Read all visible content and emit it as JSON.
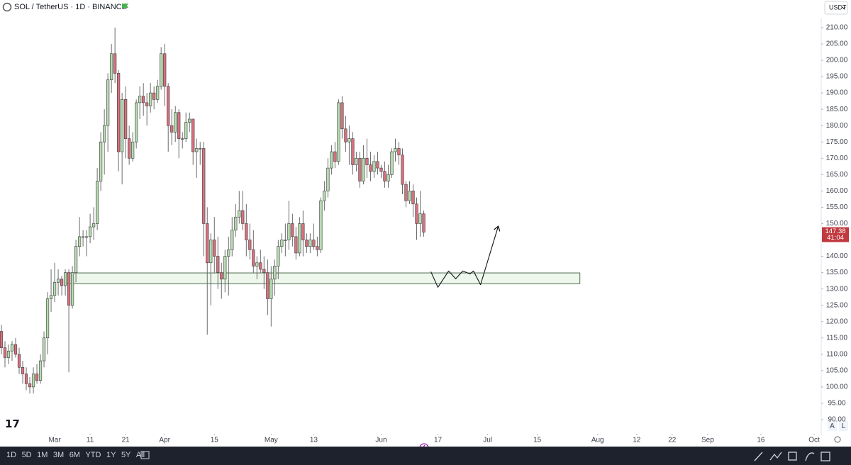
{
  "chart_data": {
    "type": "candlestick",
    "title": "SOL / TetherUS · 1D · BINANCE",
    "currency": "USDT",
    "x": [
      "02-15",
      "02-16",
      "02-17",
      "02-18",
      "02-19",
      "02-20",
      "02-21",
      "02-22",
      "02-23",
      "02-24",
      "02-25",
      "02-26",
      "02-27",
      "02-28",
      "02-29",
      "03-01",
      "03-02",
      "03-03",
      "03-04",
      "03-05",
      "03-06",
      "03-07",
      "03-08",
      "03-09",
      "03-10",
      "03-11",
      "03-12",
      "03-13",
      "03-14",
      "03-15",
      "03-16",
      "03-17",
      "03-18",
      "03-19",
      "03-20",
      "03-21",
      "03-22",
      "03-23",
      "03-24",
      "03-25",
      "03-26",
      "03-27",
      "03-28",
      "03-29",
      "03-30",
      "03-31",
      "04-01",
      "04-02",
      "04-03",
      "04-04",
      "04-05",
      "04-06",
      "04-07",
      "04-08",
      "04-09",
      "04-10",
      "04-11",
      "04-12",
      "04-13",
      "04-14",
      "04-15",
      "04-16",
      "04-17",
      "04-18",
      "04-19",
      "04-20",
      "04-21",
      "04-22",
      "04-23",
      "04-24",
      "04-25",
      "04-26",
      "04-27",
      "04-28",
      "04-29",
      "04-30",
      "05-01",
      "05-02",
      "05-03",
      "05-04",
      "05-05",
      "05-06",
      "05-07",
      "05-08",
      "05-09",
      "05-10",
      "05-11",
      "05-12",
      "05-13",
      "05-14",
      "05-15",
      "05-16",
      "05-17",
      "05-18",
      "05-19",
      "05-20",
      "05-21",
      "05-22",
      "05-23",
      "05-24",
      "05-25",
      "05-26",
      "05-27",
      "05-28",
      "05-29",
      "05-30",
      "05-31",
      "06-01",
      "06-02",
      "06-03",
      "06-04",
      "06-05",
      "06-06",
      "06-07",
      "06-08",
      "06-09",
      "06-10",
      "06-11",
      "06-12",
      "06-13"
    ],
    "open": [
      117,
      112,
      109,
      111,
      113,
      110,
      106,
      104,
      101,
      100,
      104,
      102,
      108,
      115,
      127,
      128,
      132,
      133,
      131,
      135,
      125,
      135,
      143,
      146,
      146,
      146,
      149,
      150,
      163,
      175,
      180,
      194,
      202,
      196,
      172,
      188,
      176,
      170,
      175,
      187,
      189,
      187,
      186,
      190,
      188,
      192,
      202,
      192,
      180,
      178,
      184,
      176,
      176,
      181,
      182,
      172,
      173,
      173,
      150,
      138,
      145,
      140,
      135,
      133,
      140,
      142,
      148,
      152,
      154,
      150,
      145,
      142,
      137,
      138,
      136,
      135,
      127,
      133,
      137,
      143,
      145,
      145,
      150,
      146,
      141,
      150,
      145,
      143,
      145,
      143,
      142,
      157,
      160,
      167,
      172,
      169,
      187,
      179,
      175,
      176,
      168,
      170,
      163,
      170,
      168,
      166,
      169,
      167,
      166,
      163,
      165,
      172,
      173,
      171,
      162,
      157,
      160,
      156,
      150,
      153
    ],
    "high": [
      119,
      114,
      113,
      114,
      115,
      112,
      108,
      106,
      103,
      106,
      107,
      110,
      117,
      129,
      136,
      138,
      136,
      134,
      136,
      136,
      137,
      145,
      152,
      148,
      148,
      153,
      155,
      167,
      178,
      185,
      196,
      205,
      210,
      197,
      190,
      192,
      180,
      178,
      188,
      192,
      193,
      190,
      193,
      192,
      194,
      204,
      205,
      193,
      185,
      186,
      185,
      178,
      184,
      184,
      182,
      176,
      175,
      175,
      155,
      147,
      152,
      146,
      138,
      142,
      146,
      152,
      156,
      160,
      160,
      156,
      150,
      148,
      140,
      142,
      140,
      139,
      137,
      139,
      145,
      147,
      150,
      157,
      153,
      149,
      152,
      154,
      147,
      147,
      150,
      146,
      158,
      163,
      170,
      174,
      175,
      188,
      189,
      183,
      180,
      178,
      172,
      172,
      174,
      176,
      172,
      171,
      172,
      168,
      169,
      168,
      173,
      176,
      175,
      173,
      163,
      163,
      162,
      158,
      160,
      154
    ],
    "low": [
      110,
      106,
      107,
      108,
      109,
      104,
      101,
      99,
      98,
      98,
      101,
      101,
      106,
      110,
      123,
      126,
      128,
      128,
      128,
      104.5,
      124,
      132,
      140,
      143,
      140,
      144,
      145,
      148,
      160,
      165,
      172,
      190,
      193,
      166,
      162,
      170,
      168,
      169,
      173,
      182,
      183,
      180,
      184,
      185,
      187,
      191,
      186,
      172,
      174,
      175,
      170,
      173,
      175,
      178,
      168,
      164,
      168,
      140,
      116,
      125,
      135,
      130,
      127,
      129,
      128,
      140,
      146,
      150,
      148,
      140,
      139,
      135,
      133,
      135,
      130,
      122,
      118.5,
      128,
      133,
      141,
      140,
      142,
      143,
      139,
      140,
      140,
      141,
      141,
      142,
      140,
      141,
      154,
      158,
      165,
      167,
      168,
      176,
      172,
      168,
      165,
      166,
      161,
      162,
      164,
      163,
      164,
      165,
      164,
      161,
      161,
      164,
      169,
      168,
      159,
      155,
      156,
      152,
      145,
      146,
      146
    ],
    "close": [
      112,
      109,
      111,
      113,
      110,
      106,
      104,
      101,
      100,
      104,
      102,
      108,
      115,
      127,
      128,
      132,
      133,
      131,
      135,
      125,
      135,
      143,
      146,
      146,
      146,
      149,
      150,
      163,
      175,
      180,
      194,
      202,
      196,
      172,
      188,
      176,
      170,
      175,
      187,
      189,
      187,
      186,
      190,
      188,
      192,
      202,
      192,
      180,
      178,
      184,
      176,
      176,
      181,
      182,
      172,
      173,
      173,
      150,
      138,
      145,
      140,
      135,
      133,
      140,
      142,
      148,
      152,
      154,
      150,
      145,
      142,
      137,
      138,
      136,
      135,
      127,
      133,
      137,
      143,
      145,
      145,
      150,
      146,
      141,
      150,
      145,
      143,
      145,
      143,
      142,
      157,
      160,
      167,
      172,
      169,
      187,
      179,
      175,
      176,
      168,
      170,
      163,
      170,
      168,
      166,
      169,
      167,
      166,
      163,
      165,
      172,
      173,
      171,
      162,
      157,
      160,
      156,
      150,
      153,
      147.38
    ],
    "up_color": "#b5dcae",
    "down_color": "#d8707f",
    "outline_color": "#3a3a3a",
    "ylim": [
      90,
      212.8
    ],
    "yticks": [
      {
        "value": 90,
        "label": "90.00"
      },
      {
        "value": 95,
        "label": "95.00"
      },
      {
        "value": 100,
        "label": "100.00"
      },
      {
        "value": 105,
        "label": "105.00"
      },
      {
        "value": 110,
        "label": "110.00"
      },
      {
        "value": 115,
        "label": "115.00"
      },
      {
        "value": 120,
        "label": "120.00"
      },
      {
        "value": 125,
        "label": "125.00"
      },
      {
        "value": 130,
        "label": "130.00"
      },
      {
        "value": 135,
        "label": "135.00"
      },
      {
        "value": 140,
        "label": "140.00"
      },
      {
        "value": 145,
        "label": "145.00"
      },
      {
        "value": 150,
        "label": "150.00"
      },
      {
        "value": 155,
        "label": "155.00"
      },
      {
        "value": 160,
        "label": "160.00"
      },
      {
        "value": 165,
        "label": "165.00"
      },
      {
        "value": 170,
        "label": "170.00"
      },
      {
        "value": 175,
        "label": "175.00"
      },
      {
        "value": 180,
        "label": "180.00"
      },
      {
        "value": 185,
        "label": "185.00"
      },
      {
        "value": 190,
        "label": "190.00"
      },
      {
        "value": 195,
        "label": "195.00"
      },
      {
        "value": 200,
        "label": "200.00"
      },
      {
        "value": 205,
        "label": "205.00"
      },
      {
        "value": 210,
        "label": "210.00"
      }
    ],
    "xlim": [
      "02-15",
      "10-01"
    ],
    "xticks": [
      {
        "value": "03-01",
        "label": "Mar"
      },
      {
        "value": "03-11",
        "label": "11"
      },
      {
        "value": "03-21",
        "label": "21"
      },
      {
        "value": "04-01",
        "label": "Apr"
      },
      {
        "value": "04-15",
        "label": "15"
      },
      {
        "value": "05-01",
        "label": "May"
      },
      {
        "value": "05-13",
        "label": "13"
      },
      {
        "value": "06-01",
        "label": "Jun"
      },
      {
        "value": "06-17",
        "label": "17"
      },
      {
        "value": "07-01",
        "label": "Jul"
      },
      {
        "value": "07-15",
        "label": "15"
      },
      {
        "value": "08-01",
        "label": "Aug"
      },
      {
        "value": "08-12",
        "label": "12"
      },
      {
        "value": "08-22",
        "label": "22"
      },
      {
        "value": "09-01",
        "label": "Sep"
      },
      {
        "value": "09-16",
        "label": "16"
      },
      {
        "value": "10-01",
        "label": "Oct"
      }
    ],
    "last_price": 147.38,
    "last_price_color": "#c0393f",
    "countdown": "41:04",
    "zone": {
      "from": "03-04",
      "to": "07-27",
      "top": 134.9,
      "bottom": 131.6,
      "color": "#e6f4e4",
      "border": "#4f6b4f"
    },
    "sketch": {
      "x": [
        "06-15",
        "06-17",
        "06-20",
        "06-22",
        "06-24",
        "06-26",
        "06-27",
        "06-29",
        "07-04"
      ],
      "y": [
        135.3,
        130.5,
        135.5,
        133.1,
        135.5,
        134.6,
        135.5,
        131.3,
        149.2
      ],
      "color": "#111111"
    }
  },
  "toolbar": {
    "intervals": [
      "1D",
      "5D",
      "1M",
      "3M",
      "6M",
      "YTD",
      "1Y",
      "5Y",
      "All"
    ]
  },
  "axis_buttons": {
    "auto": "A",
    "log": "L"
  }
}
